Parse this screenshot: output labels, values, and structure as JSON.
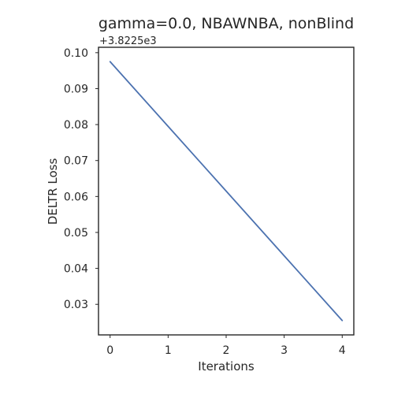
{
  "chart_data": {
    "type": "line",
    "title": "gamma=0.0, NBAWNBA, nonBlind",
    "xlabel": "Iterations",
    "ylabel": "DELTR Loss",
    "y_offset_label": "+3.8225e3",
    "x_ticks": [
      0,
      1,
      2,
      3,
      4
    ],
    "y_ticks": [
      0.03,
      0.04,
      0.05,
      0.06,
      0.07,
      0.08,
      0.09,
      0.1
    ],
    "y_tick_labels": [
      "0.03",
      "0.04",
      "0.05",
      "0.06",
      "0.07",
      "0.08",
      "0.09",
      "0.10"
    ],
    "xlim": [
      -0.2,
      4.2
    ],
    "ylim": [
      0.0215,
      0.1015
    ],
    "grid": false,
    "legend": "none",
    "series": [
      {
        "x": [
          0,
          1,
          2,
          3,
          4
        ],
        "values": [
          0.0975,
          0.0795,
          0.0615,
          0.0435,
          0.0255
        ],
        "color": "#4c72b0"
      }
    ]
  }
}
